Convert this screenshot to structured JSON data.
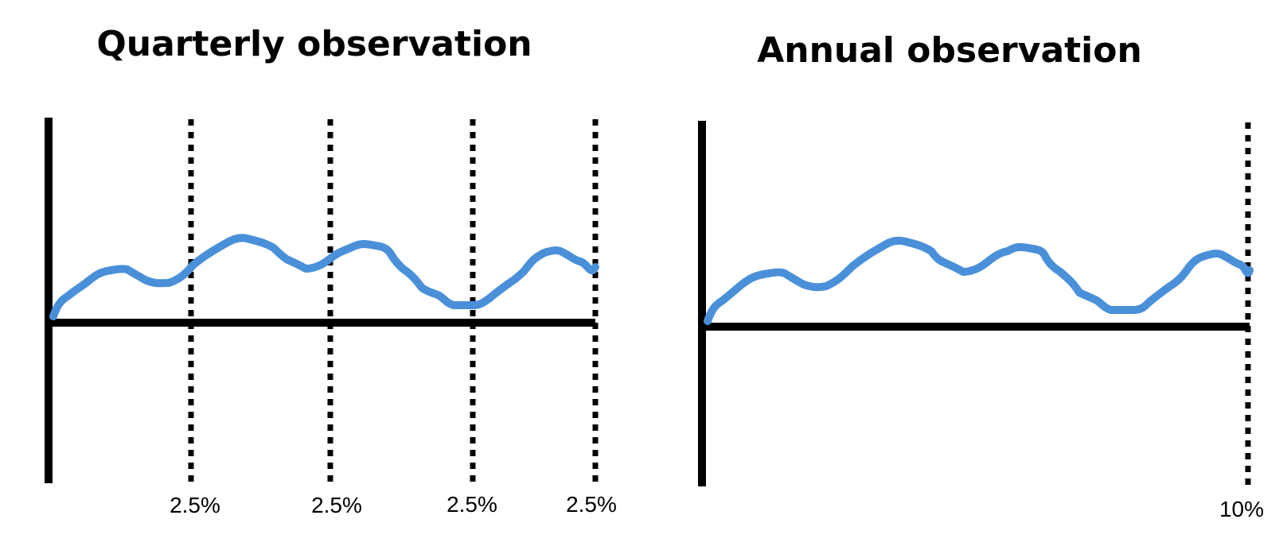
{
  "colors": {
    "curve": "#4A90D9",
    "axis": "#000000",
    "background": "#FFFFFF"
  },
  "panels": [
    {
      "title": "Quarterly observation",
      "markers": [
        {
          "label": "2.5%"
        },
        {
          "label": "2.5%"
        },
        {
          "label": "2.5%"
        },
        {
          "label": "2.5%"
        }
      ]
    },
    {
      "title": "Annual observation",
      "markers": [
        {
          "label": "10%"
        }
      ]
    }
  ]
}
